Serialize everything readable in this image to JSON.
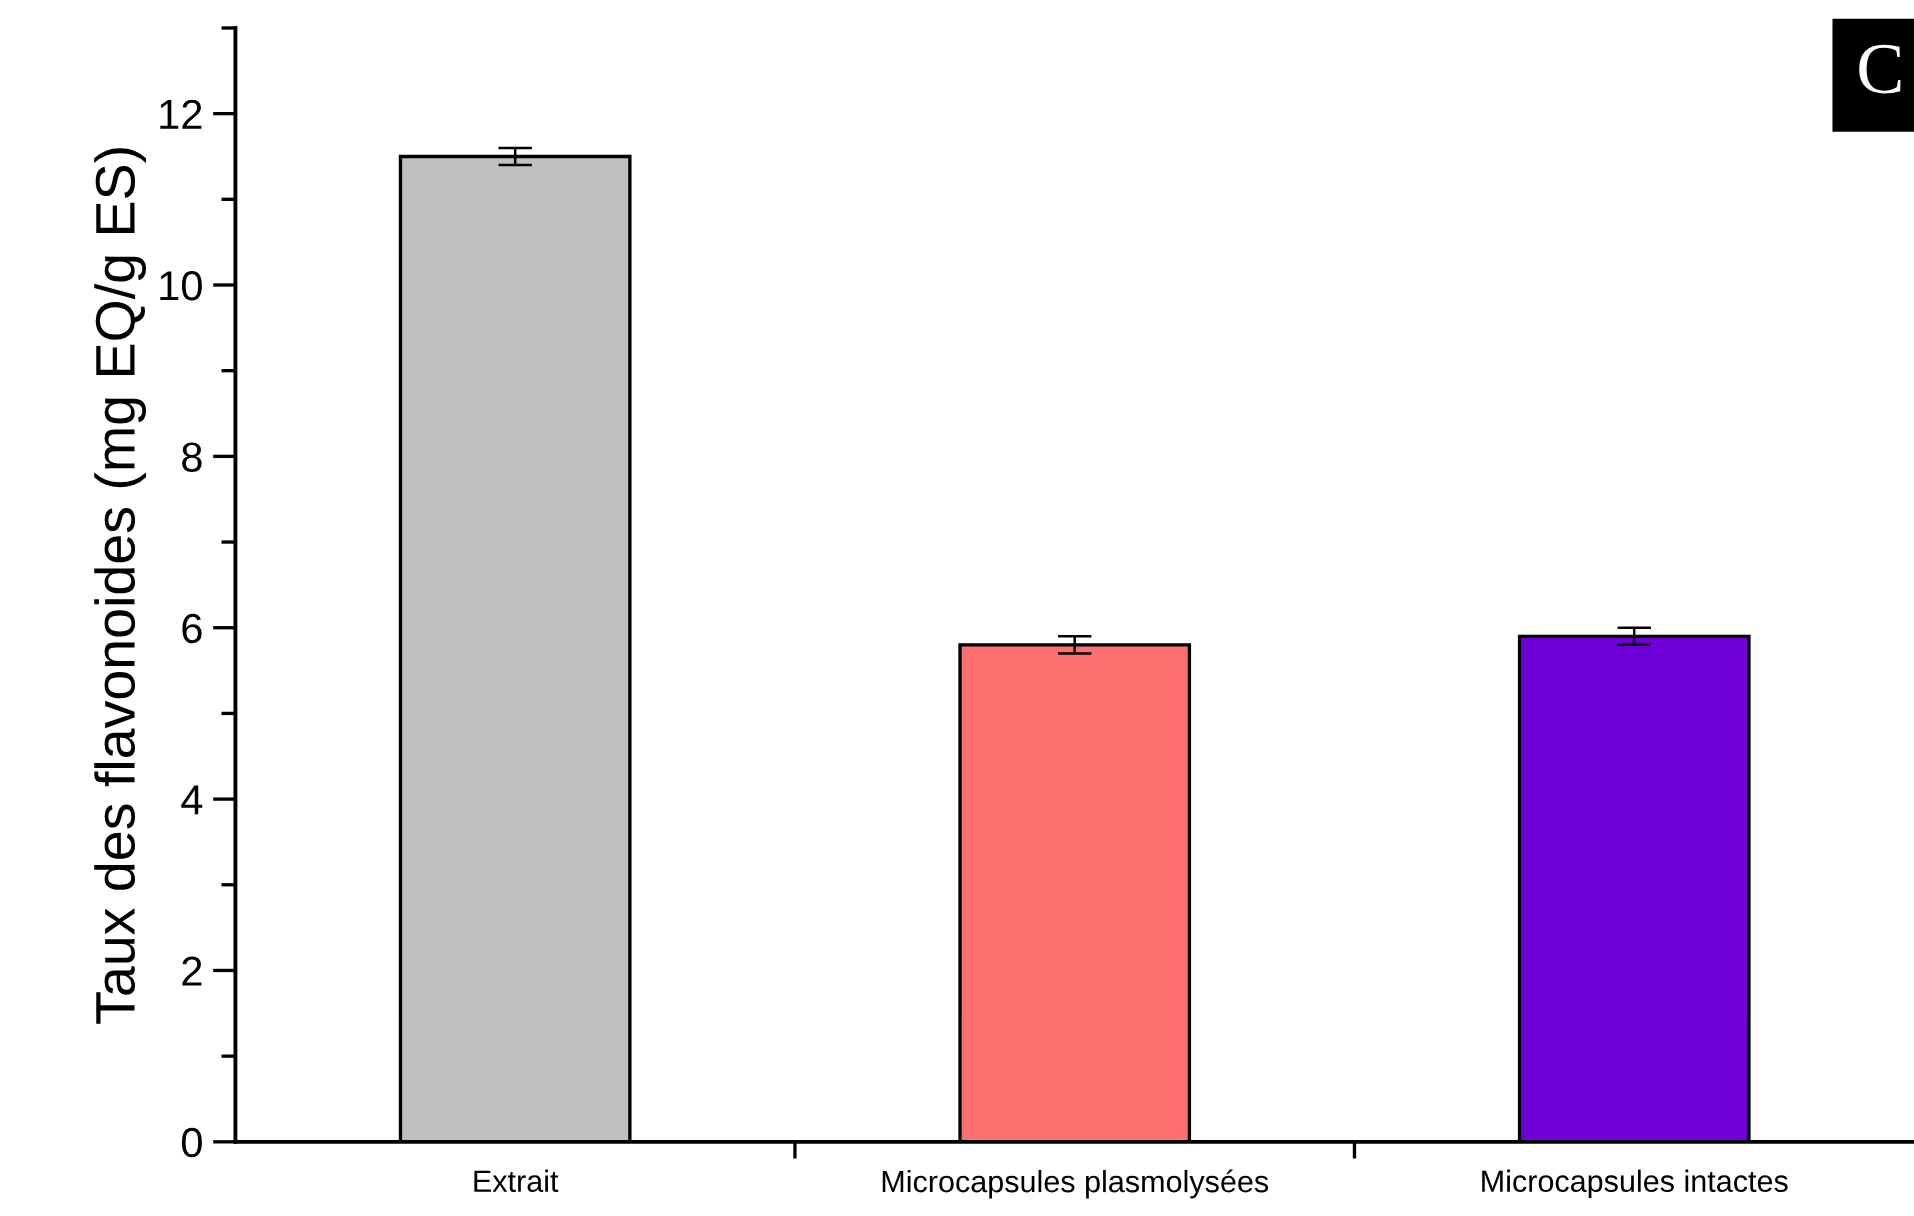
{
  "chart_data": {
    "type": "bar",
    "ylabel": "Taux des flavonoides (mg EQ/g ES)",
    "categories": [
      "Extrait",
      "Microcapsules plasmolysées",
      "Microcapsules intactes"
    ],
    "values": [
      11.5,
      5.8,
      5.9
    ],
    "errors": [
      0.1,
      0.1,
      0.1
    ],
    "colors": [
      "#c0c0c0",
      "#fd7070",
      "#7000d8"
    ],
    "ylim": [
      0,
      13
    ],
    "yticks": [
      0,
      2,
      4,
      6,
      8,
      10,
      12
    ],
    "annotations": [
      "C"
    ],
    "grid": false,
    "legend": false
  }
}
